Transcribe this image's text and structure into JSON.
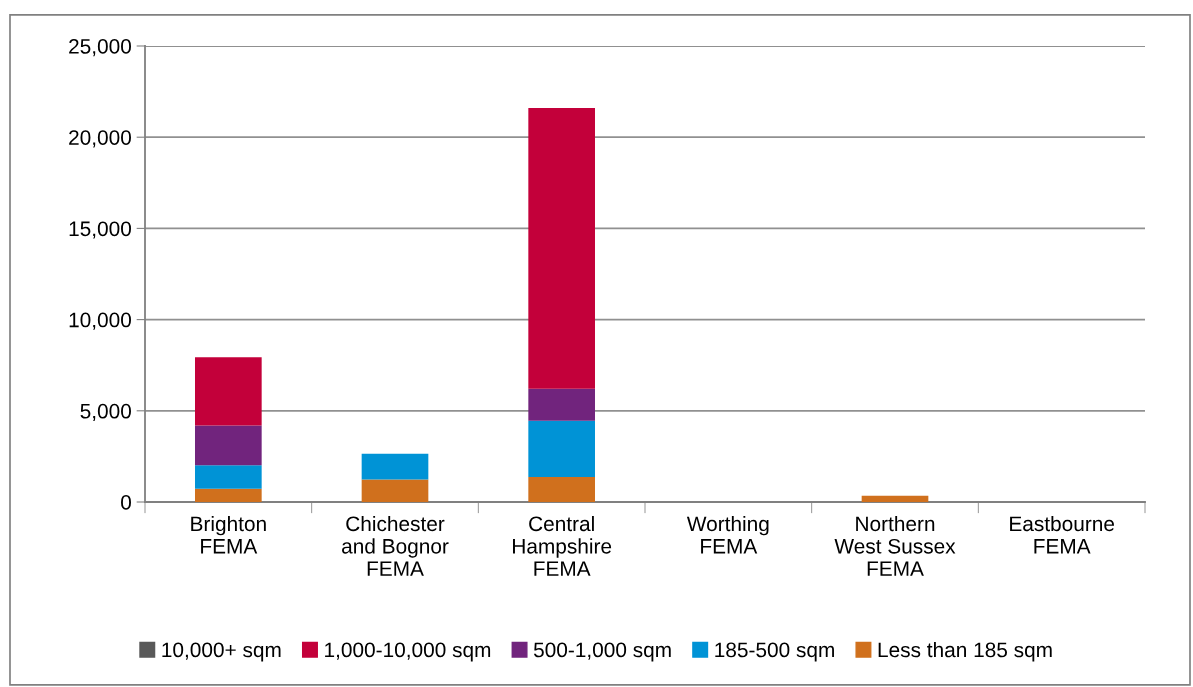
{
  "chart_data": {
    "type": "bar",
    "stacked": true,
    "categories": [
      "Brighton\nFEMA",
      "Chichester\nand Bognor\nFEMA",
      "Central\nHampshire\nFEMA",
      "Worthing\nFEMA",
      "Northern\nWest Sussex\nFEMA",
      "Eastbourne\nFEMA"
    ],
    "series": [
      {
        "name": "Less than 185 sqm",
        "color": "#d0701d",
        "values": [
          730,
          1240,
          1370,
          0,
          340,
          0
        ]
      },
      {
        "name": "185-500 sqm",
        "color": "#0093d6",
        "values": [
          1280,
          1410,
          3090,
          0,
          0,
          0
        ]
      },
      {
        "name": "500-1,000 sqm",
        "color": "#71247d",
        "values": [
          2190,
          0,
          1750,
          0,
          0,
          0
        ]
      },
      {
        "name": "1,000-10,000 sqm",
        "color": "#c3003a",
        "values": [
          3730,
          0,
          15390,
          0,
          0,
          0
        ]
      },
      {
        "name": "10,000+ sqm",
        "color": "#595959",
        "values": [
          0,
          0,
          0,
          0,
          0,
          0
        ]
      }
    ],
    "ylim": [
      0,
      25000
    ],
    "yticks": [
      {
        "value": 0,
        "label": "0"
      },
      {
        "value": 5000,
        "label": "5,000"
      },
      {
        "value": 10000,
        "label": "10,000"
      },
      {
        "value": 15000,
        "label": "15,000"
      },
      {
        "value": 20000,
        "label": "20,000"
      },
      {
        "value": 25000,
        "label": "25,000"
      }
    ],
    "grid": "y",
    "legend": "bottom"
  }
}
